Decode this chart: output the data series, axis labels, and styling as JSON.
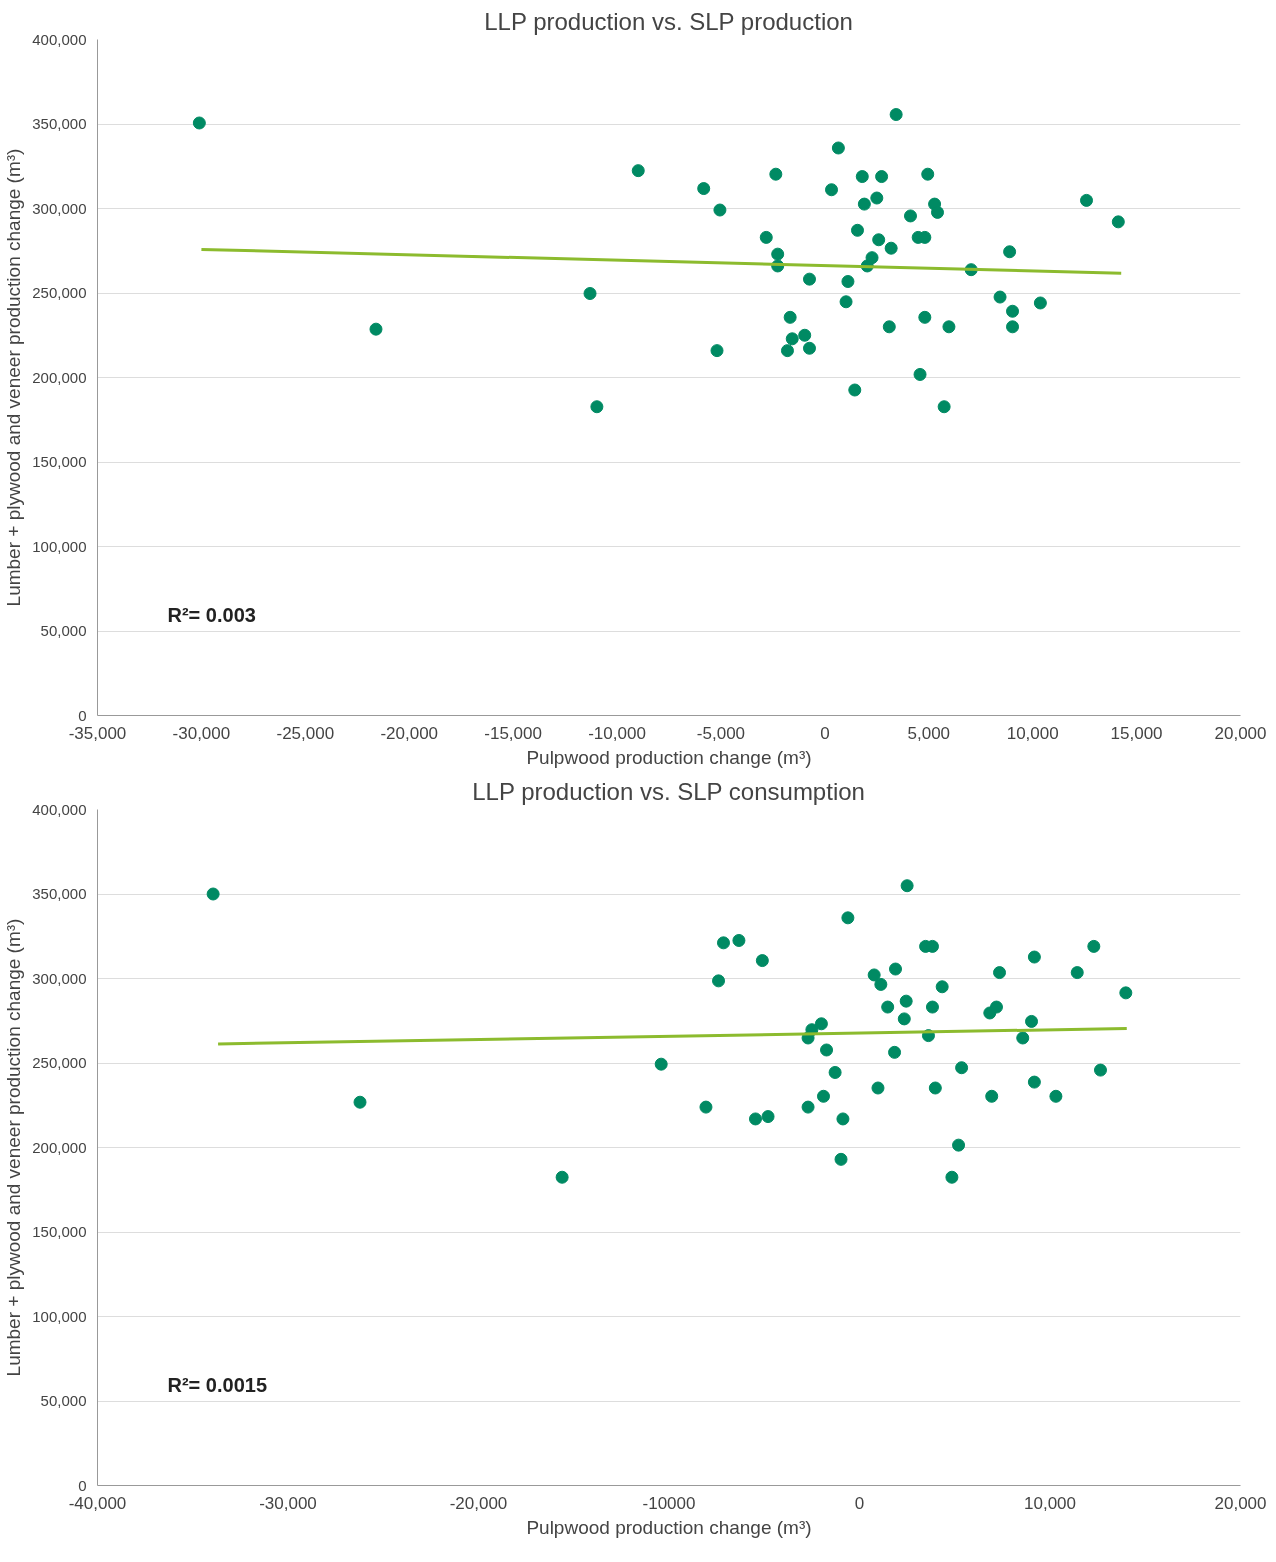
{
  "chart_data": [
    {
      "type": "scatter",
      "title": "LLP production vs. SLP production",
      "xlabel": "Pulpwood production change (m³)",
      "ylabel": "Lumber + plywood and veneer production change (m³)",
      "xlim": [
        -35000,
        20000
      ],
      "xticks": [
        {
          "value": -35000,
          "label": "-35,000"
        },
        {
          "value": -30000,
          "label": "-30,000"
        },
        {
          "value": -25000,
          "label": "-25,000"
        },
        {
          "value": -20000,
          "label": "-20,000"
        },
        {
          "value": -15000,
          "label": "-15,000"
        },
        {
          "value": -10000,
          "label": "-10,000"
        },
        {
          "value": -5000,
          "label": "-5,000"
        },
        0,
        {
          "value": 5000,
          "label": "5,000"
        },
        {
          "value": 10000,
          "label": "10,000"
        },
        {
          "value": 15000,
          "label": "15,000"
        },
        {
          "value": 20000,
          "label": "20,000"
        }
      ],
      "ylim": [
        0,
        400000
      ],
      "yticks": [
        0,
        {
          "value": 50000,
          "label": "50,000"
        },
        {
          "value": 100000,
          "label": "100,000"
        },
        {
          "value": 150000,
          "label": "150,000"
        },
        {
          "value": 200000,
          "label": "200,000"
        },
        {
          "value": 250000,
          "label": "250,000"
        },
        {
          "value": 300000,
          "label": "300,000"
        },
        {
          "value": 350000,
          "label": "350,000"
        },
        {
          "value": 400000,
          "label": "400,000"
        }
      ],
      "grid": "y",
      "annotations": [
        "R²= 0.003"
      ],
      "series": [
        {
          "marker": "circle",
          "color": "#008a63",
          "x": [
            -30100,
            -21600,
            -8980,
            -11300,
            -10970,
            -5830,
            -5050,
            -5190,
            -2360,
            -2820,
            -2270,
            -2270,
            -1670,
            -1570,
            -1800,
            -970,
            -740,
            -740,
            320,
            650,
            1020,
            1110,
            1440,
            1570,
            1800,
            1900,
            2040,
            2270,
            2500,
            2590,
            2730,
            3100,
            3190,
            3430,
            4120,
            4490,
            4580,
            4810,
            4810,
            4950,
            5280,
            5420,
            5740,
            5970,
            7040,
            8430,
            8890,
            9030,
            9030,
            10370,
            12590,
            14120
          ],
          "values": [
            350600,
            228600,
            322400,
            249700,
            182700,
            311800,
            299100,
            215900,
            320300,
            282900,
            273000,
            266000,
            235600,
            222900,
            215900,
            225000,
            217300,
            258200,
            311100,
            335800,
            244800,
            256800,
            192600,
            287100,
            318900,
            302600,
            266000,
            270900,
            306200,
            281500,
            318900,
            230000,
            276500,
            355600,
            295600,
            282900,
            201800,
            282900,
            235600,
            320300,
            302600,
            297700,
            182700,
            230000,
            263800,
            247600,
            274400,
            239200,
            230000,
            244100,
            304800,
            292100
          ]
        },
        {
          "type": "line",
          "color": "#8cbb2e",
          "x": [
            -30000,
            14260
          ],
          "values": [
            275800,
            261700
          ]
        }
      ]
    },
    {
      "type": "scatter",
      "title": "LLP production vs. SLP consumption",
      "xlabel": "Pulpwood production change (m³)",
      "ylabel": "Lumber + plywood and veneer production change (m³)",
      "xlim": [
        -40000,
        20000
      ],
      "xticks": [
        {
          "value": -40000,
          "label": "-40,000"
        },
        {
          "value": -30000,
          "label": "-30,000"
        },
        {
          "value": -20000,
          "label": "-20,000"
        },
        {
          "value": -10000,
          "label": "-10000"
        },
        0,
        {
          "value": 10000,
          "label": "10,000"
        },
        {
          "value": 20000,
          "label": "20,000"
        }
      ],
      "ylim": [
        0,
        400000
      ],
      "yticks": [
        0,
        {
          "value": 50000,
          "label": "50,000"
        },
        {
          "value": 100000,
          "label": "100,000"
        },
        {
          "value": 150000,
          "label": "150,000"
        },
        {
          "value": 200000,
          "label": "200,000"
        },
        {
          "value": 250000,
          "label": "250,000"
        },
        {
          "value": 300000,
          "label": "300,000"
        },
        {
          "value": 350000,
          "label": "350,000"
        },
        {
          "value": 400000,
          "label": "400,000"
        }
      ],
      "grid": "y",
      "annotations": [
        "R²= 0.0015"
      ],
      "series": [
        {
          "marker": "circle",
          "color": "#008a63",
          "x": [
            -33930,
            -26220,
            -15610,
            -10410,
            -8060,
            -7400,
            -7140,
            -6330,
            -5100,
            -5460,
            -4800,
            -2700,
            -2700,
            -2500,
            -2000,
            -1730,
            -1890,
            -1280,
            -870,
            -970,
            -610,
            770,
            1120,
            1890,
            1480,
            2450,
            2350,
            2500,
            970,
            1840,
            3470,
            3830,
            3830,
            3620,
            4340,
            3980,
            5200,
            4850,
            5360,
            6840,
            7190,
            6940,
            7350,
            8570,
            9030,
            9180,
            9180,
            10310,
            11430,
            12300,
            12650,
            13980
          ],
          "values": [
            350000,
            226800,
            182400,
            249300,
            223900,
            298600,
            321100,
            322500,
            310600,
            216900,
            218300,
            223900,
            264800,
            269700,
            273200,
            257700,
            230300,
            244400,
            216900,
            193000,
            335900,
            302100,
            296500,
            305600,
            283100,
            286600,
            276100,
            354900,
            235200,
            256300,
            319000,
            319000,
            283100,
            266200,
            295100,
            235200,
            201400,
            182400,
            247200,
            279600,
            283100,
            230300,
            303500,
            264800,
            274600,
            312700,
            238700,
            230300,
            303500,
            319000,
            245800,
            291500
          ]
        },
        {
          "type": "line",
          "color": "#8cbb2e",
          "x": [
            -33670,
            14030
          ],
          "values": [
            261300,
            270400
          ]
        }
      ]
    }
  ]
}
